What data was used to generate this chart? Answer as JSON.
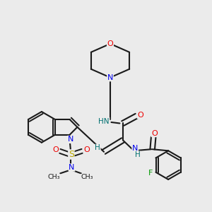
{
  "background_color": "#ebebeb",
  "bond_color": "#1a1a1a",
  "atom_colors": {
    "N": "#0000ee",
    "O": "#ee0000",
    "S": "#bbaa00",
    "F": "#009900",
    "HN": "#007070",
    "H": "#007070",
    "C": "#1a1a1a"
  },
  "figsize": [
    3.0,
    3.0
  ],
  "dpi": 100
}
